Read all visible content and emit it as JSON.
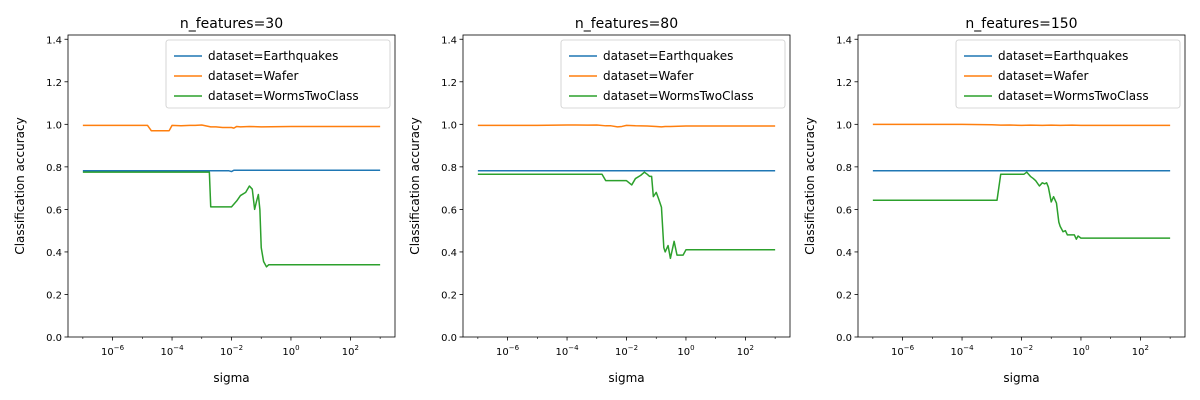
{
  "chart_data": [
    {
      "type": "line",
      "title": "n_features=30",
      "xlabel": "sigma",
      "ylabel": "Classification accuracy",
      "xscale": "log",
      "xlim": [
        1e-07,
        1000
      ],
      "ylim": [
        0,
        1.42
      ],
      "yticks": [
        "0.0",
        "0.2",
        "0.4",
        "0.6",
        "0.8",
        "1.0",
        "1.2",
        "1.4"
      ],
      "xticks": [
        {
          "base": "10",
          "exp": "−6"
        },
        {
          "base": "10",
          "exp": "−4"
        },
        {
          "base": "10",
          "exp": "−2"
        },
        {
          "base": "10",
          "exp": "0"
        },
        {
          "base": "10",
          "exp": "2"
        }
      ],
      "grid": false,
      "legend_position": "top-right",
      "series": [
        {
          "name": "dataset=Earthquakes",
          "color": "#1f77b4",
          "x": [
            1e-07,
            1e-06,
            1e-05,
            0.0001,
            0.001,
            0.008,
            0.01,
            0.012,
            0.05,
            0.1,
            1,
            10,
            100,
            1000
          ],
          "y": [
            0.782,
            0.782,
            0.782,
            0.782,
            0.782,
            0.782,
            0.778,
            0.784,
            0.784,
            0.784,
            0.784,
            0.784,
            0.784,
            0.784
          ]
        },
        {
          "name": "dataset=Wafer",
          "color": "#ff7f0e",
          "x": [
            1e-07,
            1e-06,
            1e-05,
            1.5e-05,
            2e-05,
            3e-05,
            5e-05,
            8e-05,
            0.0001,
            0.0002,
            0.0004,
            0.0006,
            0.001,
            0.002,
            0.003,
            0.005,
            0.01,
            0.012,
            0.015,
            0.02,
            0.04,
            0.1,
            1,
            10,
            100,
            1000
          ],
          "y": [
            0.995,
            0.995,
            0.995,
            0.995,
            0.97,
            0.97,
            0.97,
            0.97,
            0.995,
            0.993,
            0.995,
            0.995,
            0.997,
            0.988,
            0.988,
            0.985,
            0.985,
            0.982,
            0.99,
            0.988,
            0.99,
            0.988,
            0.99,
            0.99,
            0.99,
            0.99
          ]
        },
        {
          "name": "dataset=WormsTwoClass",
          "color": "#2ca02c",
          "x": [
            1e-07,
            1e-06,
            1e-05,
            0.0001,
            0.001,
            0.0018,
            0.002,
            0.003,
            0.006,
            0.01,
            0.015,
            0.02,
            0.03,
            0.04,
            0.05,
            0.06,
            0.07,
            0.08,
            0.09,
            0.1,
            0.12,
            0.15,
            0.18,
            0.22,
            0.3,
            0.5,
            1,
            10,
            100,
            1000
          ],
          "y": [
            0.775,
            0.775,
            0.775,
            0.775,
            0.775,
            0.775,
            0.612,
            0.612,
            0.612,
            0.612,
            0.64,
            0.665,
            0.68,
            0.71,
            0.695,
            0.6,
            0.64,
            0.67,
            0.6,
            0.42,
            0.355,
            0.33,
            0.34,
            0.34,
            0.34,
            0.34,
            0.34,
            0.34,
            0.34,
            0.34
          ]
        }
      ]
    },
    {
      "type": "line",
      "title": "n_features=80",
      "xlabel": "sigma",
      "ylabel": "Classification accuracy",
      "xscale": "log",
      "xlim": [
        1e-07,
        1000
      ],
      "ylim": [
        0,
        1.42
      ],
      "yticks": [
        "0.0",
        "0.2",
        "0.4",
        "0.6",
        "0.8",
        "1.0",
        "1.2",
        "1.4"
      ],
      "xticks": [
        {
          "base": "10",
          "exp": "−6"
        },
        {
          "base": "10",
          "exp": "−4"
        },
        {
          "base": "10",
          "exp": "−2"
        },
        {
          "base": "10",
          "exp": "0"
        },
        {
          "base": "10",
          "exp": "2"
        }
      ],
      "grid": false,
      "legend_position": "top-right",
      "series": [
        {
          "name": "dataset=Earthquakes",
          "color": "#1f77b4",
          "x": [
            1e-07,
            0.0001,
            0.01,
            1,
            100,
            1000
          ],
          "y": [
            0.782,
            0.782,
            0.782,
            0.782,
            0.782,
            0.782
          ]
        },
        {
          "name": "dataset=Wafer",
          "color": "#ff7f0e",
          "x": [
            1e-07,
            1e-06,
            1e-05,
            0.0001,
            0.0002,
            0.0005,
            0.001,
            0.002,
            0.003,
            0.005,
            0.007,
            0.01,
            0.02,
            0.05,
            0.1,
            0.15,
            0.2,
            0.3,
            1,
            10,
            100,
            1000
          ],
          "y": [
            0.995,
            0.995,
            0.995,
            0.997,
            0.997,
            0.996,
            0.997,
            0.993,
            0.993,
            0.988,
            0.99,
            0.995,
            0.993,
            0.992,
            0.99,
            0.988,
            0.99,
            0.99,
            0.992,
            0.992,
            0.992,
            0.992
          ]
        },
        {
          "name": "dataset=WormsTwoClass",
          "color": "#2ca02c",
          "x": [
            1e-07,
            1e-06,
            1e-05,
            0.0001,
            0.001,
            0.0015,
            0.002,
            0.004,
            0.008,
            0.01,
            0.015,
            0.02,
            0.03,
            0.04,
            0.05,
            0.06,
            0.07,
            0.08,
            0.1,
            0.12,
            0.15,
            0.18,
            0.2,
            0.25,
            0.3,
            0.4,
            0.5,
            0.6,
            0.8,
            1,
            1.2,
            10,
            100,
            1000
          ],
          "y": [
            0.765,
            0.765,
            0.765,
            0.765,
            0.765,
            0.765,
            0.735,
            0.735,
            0.735,
            0.735,
            0.715,
            0.745,
            0.76,
            0.775,
            0.765,
            0.755,
            0.755,
            0.66,
            0.68,
            0.65,
            0.61,
            0.42,
            0.4,
            0.43,
            0.37,
            0.45,
            0.385,
            0.385,
            0.385,
            0.41,
            0.41,
            0.41,
            0.41,
            0.41
          ]
        }
      ]
    },
    {
      "type": "line",
      "title": "n_features=150",
      "xlabel": "sigma",
      "ylabel": "Classification accuracy",
      "xscale": "log",
      "xlim": [
        1e-07,
        1000
      ],
      "ylim": [
        0,
        1.42
      ],
      "yticks": [
        "0.0",
        "0.2",
        "0.4",
        "0.6",
        "0.8",
        "1.0",
        "1.2",
        "1.4"
      ],
      "xticks": [
        {
          "base": "10",
          "exp": "−6"
        },
        {
          "base": "10",
          "exp": "−4"
        },
        {
          "base": "10",
          "exp": "−2"
        },
        {
          "base": "10",
          "exp": "0"
        },
        {
          "base": "10",
          "exp": "2"
        }
      ],
      "grid": false,
      "legend_position": "top-right",
      "series": [
        {
          "name": "dataset=Earthquakes",
          "color": "#1f77b4",
          "x": [
            1e-07,
            0.0001,
            0.01,
            1,
            100,
            1000
          ],
          "y": [
            0.782,
            0.782,
            0.782,
            0.782,
            0.782,
            0.782
          ]
        },
        {
          "name": "dataset=Wafer",
          "color": "#ff7f0e",
          "x": [
            1e-07,
            1e-06,
            1e-05,
            0.0001,
            0.001,
            0.002,
            0.004,
            0.01,
            0.02,
            0.05,
            0.1,
            0.2,
            0.5,
            1,
            10,
            100,
            1000
          ],
          "y": [
            1.0,
            1.0,
            1.0,
            1.0,
            0.998,
            0.996,
            0.997,
            0.995,
            0.996,
            0.995,
            0.996,
            0.995,
            0.996,
            0.995,
            0.995,
            0.995,
            0.995
          ]
        },
        {
          "name": "dataset=WormsTwoClass",
          "color": "#2ca02c",
          "x": [
            1e-07,
            1e-06,
            1e-05,
            0.0001,
            0.001,
            0.0015,
            0.002,
            0.004,
            0.008,
            0.012,
            0.015,
            0.02,
            0.025,
            0.03,
            0.04,
            0.05,
            0.06,
            0.07,
            0.08,
            0.1,
            0.12,
            0.15,
            0.18,
            0.2,
            0.25,
            0.3,
            0.35,
            0.4,
            0.5,
            0.6,
            0.7,
            0.8,
            1,
            1.2,
            1.5,
            10,
            100,
            1000
          ],
          "y": [
            0.643,
            0.643,
            0.643,
            0.643,
            0.643,
            0.643,
            0.765,
            0.765,
            0.765,
            0.765,
            0.775,
            0.755,
            0.745,
            0.735,
            0.71,
            0.725,
            0.72,
            0.725,
            0.705,
            0.635,
            0.66,
            0.63,
            0.54,
            0.52,
            0.495,
            0.5,
            0.48,
            0.48,
            0.48,
            0.48,
            0.46,
            0.475,
            0.465,
            0.465,
            0.465,
            0.465,
            0.465,
            0.465
          ]
        }
      ]
    }
  ]
}
